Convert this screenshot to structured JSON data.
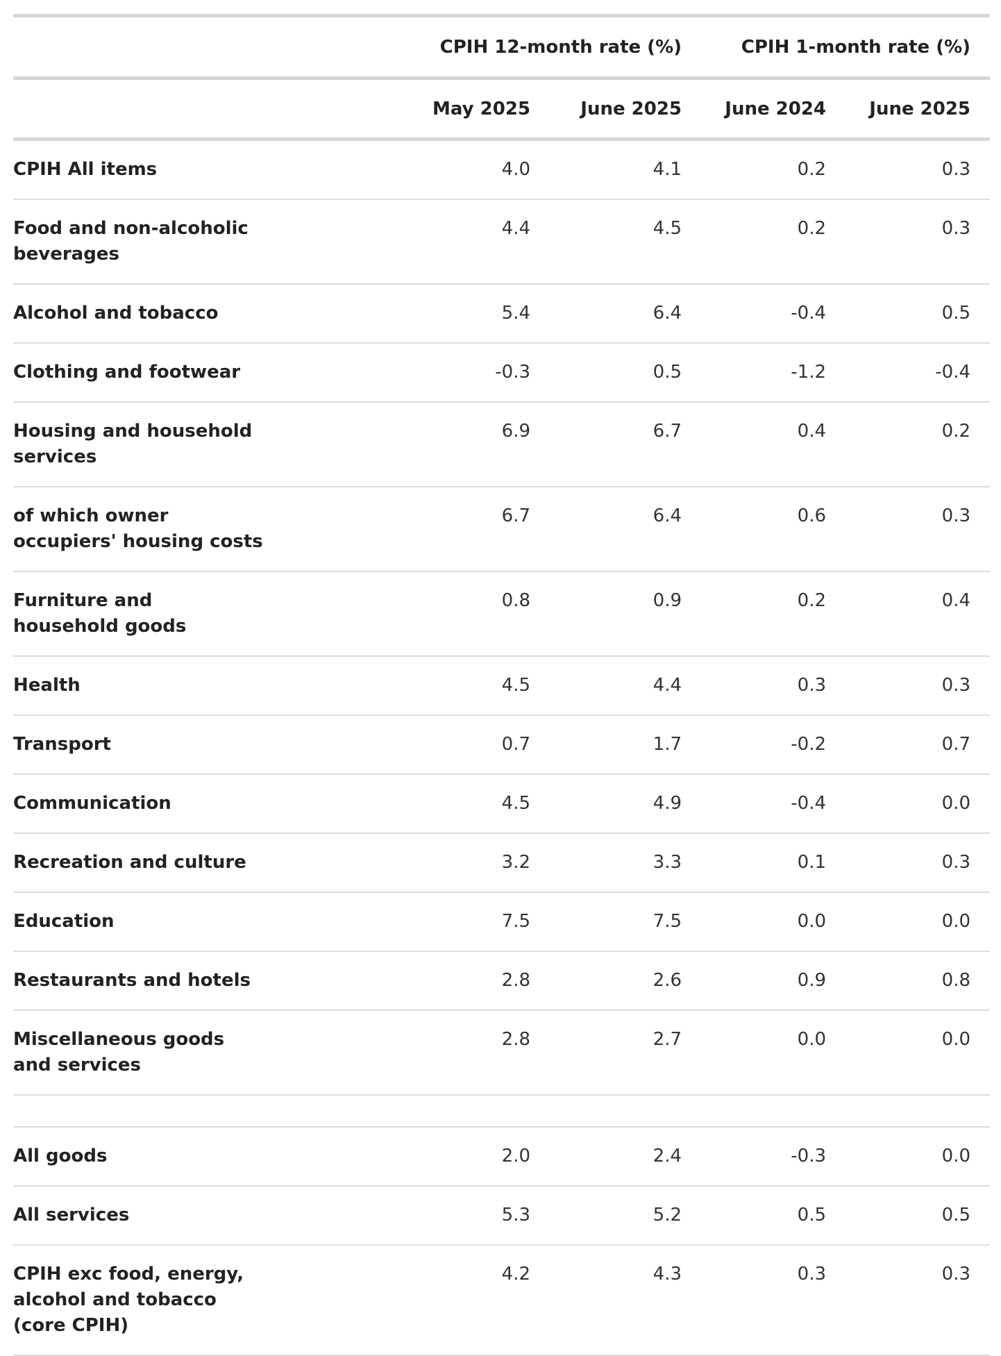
{
  "header": {
    "group_12m": "CPIH 12-month rate (%)",
    "group_1m": "CPIH 1-month rate (%)",
    "col_may2025": "May 2025",
    "col_june2025_12m": "June 2025",
    "col_june2024": "June 2024",
    "col_june2025_1m": "June 2025"
  },
  "rows": [
    {
      "label": "CPIH All items",
      "v": [
        "4.0",
        "4.1",
        "0.2",
        "0.3"
      ]
    },
    {
      "label": "Food and non-alcoholic beverages",
      "v": [
        "4.4",
        "4.5",
        "0.2",
        "0.3"
      ]
    },
    {
      "label": "Alcohol and tobacco",
      "v": [
        "5.4",
        "6.4",
        "-0.4",
        "0.5"
      ]
    },
    {
      "label": "Clothing and footwear",
      "v": [
        "-0.3",
        "0.5",
        "-1.2",
        "-0.4"
      ]
    },
    {
      "label": "Housing and household services",
      "v": [
        "6.9",
        "6.7",
        "0.4",
        "0.2"
      ]
    },
    {
      "label": "of which owner occupiers' housing costs",
      "v": [
        "6.7",
        "6.4",
        "0.6",
        "0.3"
      ]
    },
    {
      "label": "Furniture and household goods",
      "v": [
        "0.8",
        "0.9",
        "0.2",
        "0.4"
      ]
    },
    {
      "label": "Health",
      "v": [
        "4.5",
        "4.4",
        "0.3",
        "0.3"
      ]
    },
    {
      "label": "Transport",
      "v": [
        "0.7",
        "1.7",
        "-0.2",
        "0.7"
      ]
    },
    {
      "label": "Communication",
      "v": [
        "4.5",
        "4.9",
        "-0.4",
        "0.0"
      ]
    },
    {
      "label": "Recreation and culture",
      "v": [
        "3.2",
        "3.3",
        "0.1",
        "0.3"
      ]
    },
    {
      "label": "Education",
      "v": [
        "7.5",
        "7.5",
        "0.0",
        "0.0"
      ]
    },
    {
      "label": "Restaurants and hotels",
      "v": [
        "2.8",
        "2.6",
        "0.9",
        "0.8"
      ]
    },
    {
      "label": "Miscellaneous goods and services",
      "v": [
        "2.8",
        "2.7",
        "0.0",
        "0.0"
      ]
    }
  ],
  "rows2": [
    {
      "label": "All goods",
      "v": [
        "2.0",
        "2.4",
        "-0.3",
        "0.0"
      ]
    },
    {
      "label": "All services",
      "v": [
        "5.3",
        "5.2",
        "0.5",
        "0.5"
      ]
    },
    {
      "label": "CPIH exc food, energy, alcohol and tobacco (core CPIH)",
      "v": [
        "4.2",
        "4.3",
        "0.3",
        "0.3"
      ]
    }
  ]
}
